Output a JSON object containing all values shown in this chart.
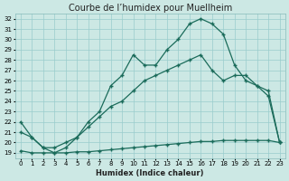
{
  "title": "Courbe de l’humidex pour Muellheim",
  "xlabel": "Humidex (Indice chaleur)",
  "bg_color": "#cce8e4",
  "line_color": "#1a6b5a",
  "grid_color": "#99cccc",
  "xlim": [
    -0.5,
    23.5
  ],
  "ylim": [
    18.5,
    32.5
  ],
  "xticks": [
    0,
    1,
    2,
    3,
    4,
    5,
    6,
    7,
    8,
    9,
    10,
    11,
    12,
    13,
    14,
    15,
    16,
    17,
    18,
    19,
    20,
    21,
    22,
    23
  ],
  "yticks": [
    19,
    20,
    21,
    22,
    23,
    24,
    25,
    26,
    27,
    28,
    29,
    30,
    31,
    32
  ],
  "curve_flat_x": [
    0,
    1,
    2,
    3,
    4,
    5,
    6,
    7,
    8,
    9,
    10,
    11,
    12,
    13,
    14,
    15,
    16,
    17,
    18,
    19,
    20,
    21,
    22,
    23
  ],
  "curve_flat_y": [
    19.2,
    19.0,
    19.0,
    19.0,
    19.0,
    19.1,
    19.1,
    19.2,
    19.3,
    19.4,
    19.5,
    19.6,
    19.7,
    19.8,
    19.9,
    20.0,
    20.1,
    20.1,
    20.2,
    20.2,
    20.2,
    20.2,
    20.2,
    20.0
  ],
  "curve_mid_x": [
    0,
    1,
    2,
    3,
    4,
    5,
    6,
    7,
    8,
    9,
    10,
    11,
    12,
    13,
    14,
    15,
    16,
    17,
    18,
    19,
    20,
    21,
    22,
    23
  ],
  "curve_mid_y": [
    21.0,
    20.5,
    19.5,
    19.5,
    20.0,
    20.5,
    21.5,
    22.5,
    23.5,
    24.0,
    25.0,
    26.0,
    26.5,
    27.0,
    27.5,
    28.0,
    28.5,
    27.0,
    26.0,
    26.5,
    26.5,
    25.5,
    25.0,
    20.0
  ],
  "curve_top_x": [
    0,
    1,
    2,
    3,
    4,
    5,
    6,
    7,
    8,
    9,
    10,
    11,
    12,
    13,
    14,
    15,
    16,
    17,
    18,
    19,
    20,
    21,
    22,
    23
  ],
  "curve_top_y": [
    22.0,
    20.5,
    19.5,
    19.0,
    19.5,
    20.5,
    22.0,
    23.0,
    25.5,
    26.5,
    28.5,
    27.5,
    27.5,
    29.0,
    30.0,
    31.5,
    32.0,
    31.5,
    30.5,
    27.5,
    26.0,
    25.5,
    24.5,
    20.0
  ],
  "marker": "+",
  "markersize": 3,
  "linewidth": 0.9,
  "title_fontsize": 7,
  "xlabel_fontsize": 6,
  "tick_fontsize": 5
}
